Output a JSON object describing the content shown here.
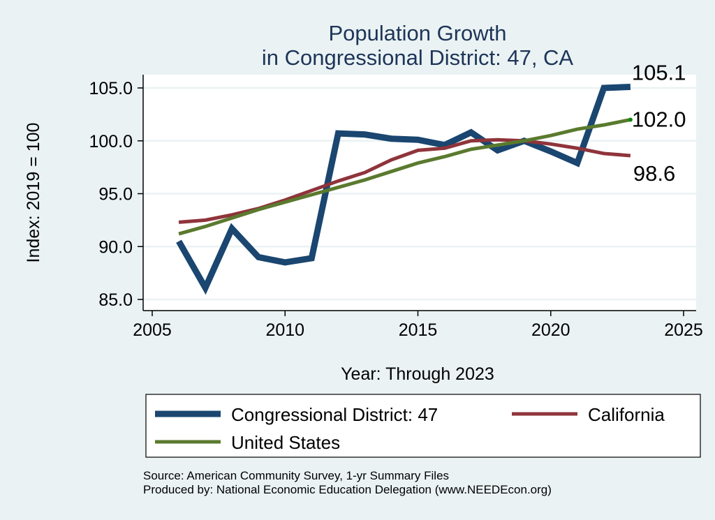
{
  "chart_data": {
    "type": "line",
    "title": [
      "Population Growth",
      "in Congressional District: 47, CA"
    ],
    "xlabel": "Year: Through 2023",
    "ylabel": "Index: 2019 = 100",
    "xlim": [
      2005,
      2025
    ],
    "ylim": [
      85,
      105
    ],
    "xticks": [
      2005,
      2010,
      2015,
      2020,
      2025
    ],
    "yticks": [
      85,
      90,
      95,
      100,
      105
    ],
    "ytick_labels": [
      "85.0",
      "90.0",
      "95.0",
      "100.0",
      "105.0"
    ],
    "grid": true,
    "legend_position": "bottom",
    "x": [
      2006,
      2007,
      2008,
      2009,
      2010,
      2011,
      2012,
      2013,
      2014,
      2015,
      2016,
      2017,
      2018,
      2019,
      2020,
      2021,
      2022,
      2023
    ],
    "series": [
      {
        "name": "Congressional District: 47",
        "color": "#1a4670",
        "width": 9,
        "values": [
          90.5,
          86.1,
          91.7,
          89.0,
          88.5,
          88.9,
          100.7,
          100.6,
          100.2,
          100.1,
          99.6,
          100.8,
          99.1,
          100.0,
          99.0,
          97.9,
          105.0,
          105.1
        ],
        "end_label": "105.1"
      },
      {
        "name": "California",
        "color": "#8f343b",
        "width": 5,
        "values": [
          92.3,
          92.5,
          93.0,
          93.6,
          94.4,
          95.3,
          96.2,
          97.0,
          98.2,
          99.1,
          99.3,
          100.0,
          100.1,
          100.0,
          99.7,
          99.3,
          98.8,
          98.6
        ],
        "end_label": "98.6"
      },
      {
        "name": "United States",
        "color": "#5a7a2e",
        "width": 5,
        "values": [
          91.2,
          91.9,
          92.7,
          93.5,
          94.2,
          94.9,
          95.6,
          96.3,
          97.1,
          97.9,
          98.5,
          99.2,
          99.6,
          100.0,
          100.5,
          101.1,
          101.5,
          102.0
        ],
        "end_label": "102.0"
      }
    ],
    "notes": [
      "Source: American Community Survey, 1-yr Summary Files",
      "Produced by: National Economic Education Delegation (www.NEEDEcon.org)"
    ]
  },
  "colors": {
    "title": "#1e3559",
    "background": "#eaf2f3",
    "plot": "#ffffff",
    "grid": "#eaf2f3",
    "endpoint": "#0a8a0a"
  }
}
